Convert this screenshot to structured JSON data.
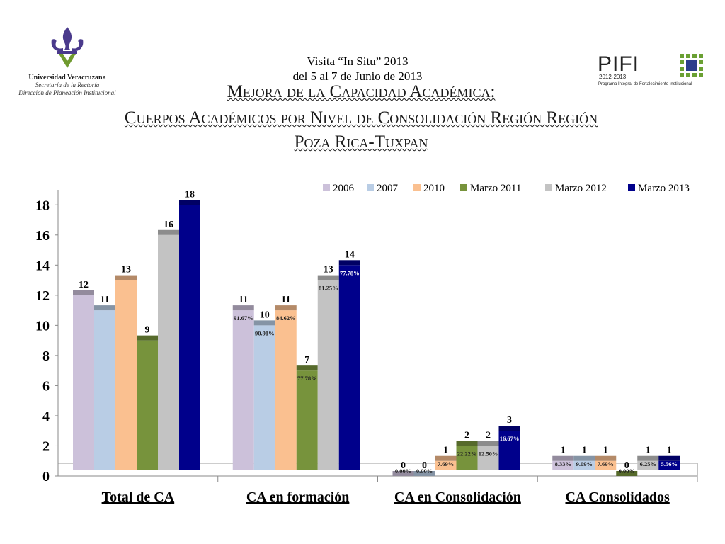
{
  "header": {
    "university": "Universidad Veracruzana",
    "secretaria": "Secretaría de la Rectoría",
    "direccion": "Dirección de Planeación Institucional",
    "visit_line1": "Visita “In Situ”  2013",
    "visit_line2": "del 5 al 7 de Junio de 2013",
    "pifi_word": "PIFI",
    "pifi_years": "2012-2013",
    "pifi_desc": "Programa Integral de Fortalecimiento Institucional",
    "title_line1": "Mejora de la Capacidad Académica:",
    "title_line2": "Cuerpos Académicos por Nivel de Consolidación Región Región",
    "title_line3": "Poza Rica-Tuxpan"
  },
  "colors": {
    "logo_purple": "#4a3a8c",
    "logo_green": "#6f9a2e",
    "pifi_green": "#6aa033",
    "pifi_blue": "#2c3e8c"
  },
  "chart_data": {
    "type": "bar",
    "categories": [
      "Total de CA",
      "CA en formación",
      "CA en Consolidación",
      "CA Consolidados"
    ],
    "series": [
      {
        "name": "2006",
        "color": "#ccc1da",
        "values": [
          12,
          11,
          0,
          1
        ],
        "pct": [
          "",
          "91.67%",
          "0.00%",
          "8.33%"
        ]
      },
      {
        "name": "2007",
        "color": "#b9cde5",
        "values": [
          11,
          10,
          0,
          1
        ],
        "pct": [
          "",
          "90.91%",
          "0.00%",
          "9.09%"
        ]
      },
      {
        "name": "2010",
        "color": "#fac090",
        "values": [
          13,
          11,
          1,
          1
        ],
        "pct": [
          "",
          "84.62%",
          "7.69%",
          "7.69%"
        ]
      },
      {
        "name": "Marzo 2011",
        "color": "#77933c",
        "values": [
          9,
          7,
          2,
          0
        ],
        "pct": [
          "",
          "77.78%",
          "22.22%",
          "0.00%"
        ]
      },
      {
        "name": "Marzo 2012",
        "color": "#c3c3c3",
        "values": [
          16,
          13,
          2,
          1
        ],
        "pct": [
          "",
          "81.25%",
          "12.50%",
          "6.25%"
        ]
      },
      {
        "name": "Marzo 2013",
        "color": "#00008b",
        "values": [
          18,
          14,
          3,
          1
        ],
        "pct": [
          "",
          "77.78%",
          "16.67%",
          "5.56%"
        ]
      }
    ],
    "yticks": [
      "0",
      "2",
      "4",
      "6",
      "8",
      "10",
      "12",
      "14",
      "16",
      "18"
    ],
    "ylim": [
      0,
      19
    ],
    "grid": false,
    "legend": "top-right"
  }
}
